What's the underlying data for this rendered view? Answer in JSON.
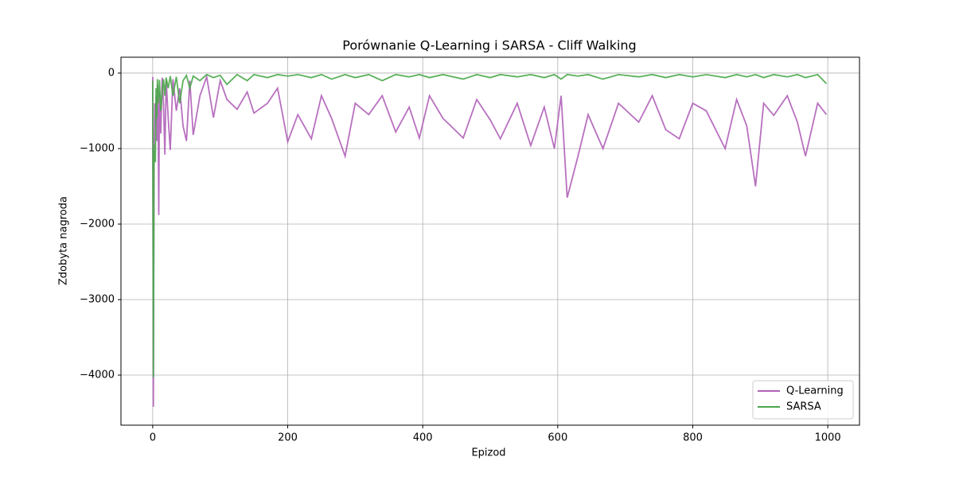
{
  "chart_data": {
    "type": "line",
    "title": "Porównanie Q-Learning i SARSA - Cliff Walking",
    "x_label": "Epizod",
    "y_label": "Zdobyta nagroda",
    "x": [
      0,
      1,
      2,
      3,
      4,
      5,
      6,
      7,
      8,
      9,
      10,
      12,
      14,
      16,
      18,
      20,
      23,
      26,
      30,
      35,
      40,
      45,
      50,
      55,
      60,
      70,
      80,
      90,
      100,
      110,
      125,
      140,
      150,
      170,
      185,
      200,
      215,
      235,
      250,
      265,
      285,
      300,
      320,
      340,
      360,
      380,
      395,
      410,
      430,
      460,
      480,
      500,
      515,
      540,
      560,
      580,
      595,
      605,
      614,
      630,
      645,
      667,
      690,
      720,
      740,
      760,
      780,
      800,
      820,
      848,
      865,
      880,
      893,
      905,
      920,
      940,
      955,
      967,
      985,
      998
    ],
    "series": [
      {
        "name": "Q-Learning",
        "color": "#b061b8",
        "values": [
          -50,
          -4420,
          -1200,
          -400,
          -700,
          -300,
          -900,
          -150,
          -600,
          -1880,
          -250,
          -800,
          -60,
          -400,
          -1080,
          -100,
          -600,
          -1020,
          -80,
          -500,
          -200,
          -700,
          -900,
          -100,
          -820,
          -300,
          -50,
          -590,
          -100,
          -350,
          -480,
          -250,
          -530,
          -400,
          -200,
          -910,
          -550,
          -870,
          -300,
          -600,
          -1100,
          -400,
          -550,
          -300,
          -780,
          -450,
          -860,
          -300,
          -600,
          -860,
          -350,
          -620,
          -870,
          -400,
          -960,
          -450,
          -1000,
          -300,
          -1650,
          -1100,
          -550,
          -1000,
          -400,
          -650,
          -300,
          -750,
          -870,
          -400,
          -500,
          -1000,
          -350,
          -700,
          -1500,
          -400,
          -560,
          -300,
          -650,
          -1100,
          -400,
          -550
        ]
      },
      {
        "name": "SARSA",
        "color": "#4aa84a",
        "values": [
          -100,
          -4030,
          -1150,
          -950,
          -1180,
          -200,
          -600,
          -80,
          -400,
          -300,
          -90,
          -500,
          -250,
          -80,
          -300,
          -60,
          -200,
          -40,
          -300,
          -50,
          -400,
          -100,
          -30,
          -200,
          -40,
          -100,
          -20,
          -60,
          -30,
          -150,
          -20,
          -100,
          -20,
          -60,
          -20,
          -40,
          -20,
          -60,
          -20,
          -80,
          -20,
          -60,
          -20,
          -100,
          -20,
          -50,
          -20,
          -60,
          -20,
          -80,
          -20,
          -60,
          -20,
          -50,
          -20,
          -60,
          -20,
          -80,
          -20,
          -40,
          -20,
          -80,
          -20,
          -50,
          -20,
          -60,
          -20,
          -50,
          -20,
          -60,
          -20,
          -50,
          -20,
          -60,
          -20,
          -50,
          -20,
          -60,
          -20,
          -140
        ]
      }
    ],
    "xlim": [
      -47,
      1047
    ],
    "ylim": [
      -4663,
      210
    ],
    "xticks": [
      0,
      200,
      400,
      600,
      800,
      1000
    ],
    "yticks": [
      {
        "value": -4000,
        "label": "−4000"
      },
      {
        "value": -3000,
        "label": "−3000"
      },
      {
        "value": -2000,
        "label": "−2000"
      },
      {
        "value": -1000,
        "label": "−1000"
      },
      0
    ],
    "grid": true,
    "legend": "lower right"
  }
}
